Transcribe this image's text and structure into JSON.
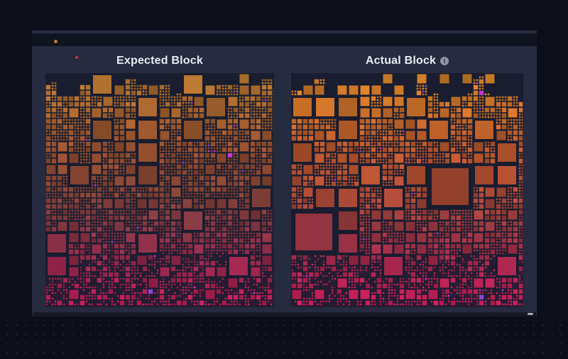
{
  "page": {
    "background": "#0d101b",
    "dot_color": "#20253a"
  },
  "toolbar": {
    "background": "#10141e",
    "highlight": "#282c40",
    "status_dot_color": "#c2782c"
  },
  "panel": {
    "background": "#262b3f",
    "notification_dot_color": "#c53636"
  },
  "header": {
    "title_color": "#e9ebf2",
    "info_glyph": "i",
    "info_bg": "#9095a2",
    "info_fg": "#232633"
  },
  "scrollbar": {
    "track": "#171a25",
    "thumb": "#a9adb8"
  },
  "accent_colors": [
    "#8b45d6",
    "#c13ad1"
  ],
  "blocks": [
    {
      "id": "expected",
      "title": "Expected Block",
      "seed": 1371337,
      "background": "#191d2f",
      "sky_base": 6,
      "sky_range": 22,
      "palette": [
        {
          "t": 0.0,
          "c": "#ad722e"
        },
        {
          "t": 0.15,
          "c": "#a2622e"
        },
        {
          "t": 0.32,
          "c": "#924d2e"
        },
        {
          "t": 0.5,
          "c": "#7e4134"
        },
        {
          "t": 0.66,
          "c": "#7b3340"
        },
        {
          "t": 0.82,
          "c": "#92264a"
        },
        {
          "t": 1.0,
          "c": "#bc1b54"
        }
      ]
    },
    {
      "id": "actual",
      "title": "Actual Block",
      "seed": 9876241,
      "background": "#191d2f",
      "sky_base": 2,
      "sky_range": 32,
      "palette": [
        {
          "t": 0.0,
          "c": "#cd7f27"
        },
        {
          "t": 0.15,
          "c": "#c46d28"
        },
        {
          "t": 0.32,
          "c": "#b4552c"
        },
        {
          "t": 0.5,
          "c": "#a94a33"
        },
        {
          "t": 0.66,
          "c": "#943740"
        },
        {
          "t": 0.82,
          "c": "#a2264c"
        },
        {
          "t": 1.0,
          "c": "#c21b55"
        }
      ]
    }
  ]
}
